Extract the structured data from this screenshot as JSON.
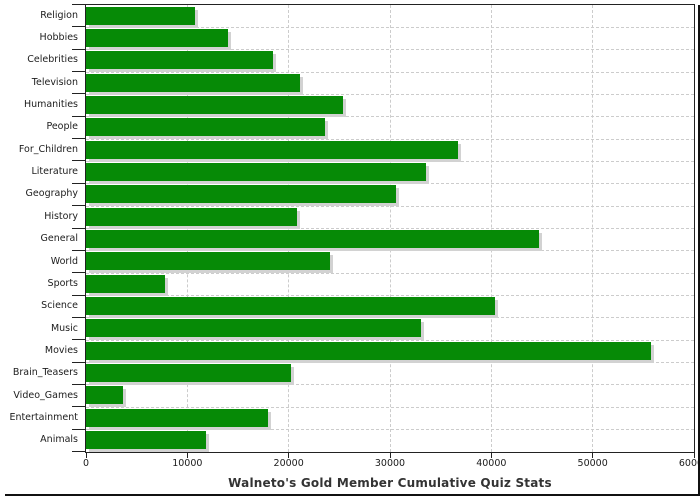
{
  "chart_data": {
    "type": "bar",
    "orientation": "horizontal",
    "title": "Walneto's Gold Member Cumulative Quiz Stats",
    "categories": [
      "Religion",
      "Hobbies",
      "Celebrities",
      "Television",
      "Humanities",
      "People",
      "For_Children",
      "Literature",
      "Geography",
      "History",
      "General",
      "World",
      "Sports",
      "Science",
      "Music",
      "Movies",
      "Brain_Teasers",
      "Video_Games",
      "Entertainment",
      "Animals"
    ],
    "values": [
      10750,
      14050,
      18500,
      21100,
      25350,
      23600,
      36700,
      33600,
      30600,
      20850,
      44750,
      24050,
      7800,
      40400,
      33100,
      55800,
      20200,
      3700,
      18000,
      11800
    ],
    "xlabel": "",
    "ylabel": "",
    "xlim": [
      0,
      60000
    ],
    "x_ticks": [
      0,
      10000,
      20000,
      30000,
      40000,
      50000,
      60000
    ],
    "x_tick_labels": [
      "0",
      "10000",
      "20000",
      "30000",
      "40000",
      "50000",
      "60000"
    ],
    "grid": "dashed, vertical at each x tick and horizontal at each category boundary",
    "legend": "none",
    "colors": {
      "bar": "#068A06",
      "bar_shadow": "#d2d2d2",
      "grid": "#cccccc",
      "axis": "#222222",
      "tick": "#222222",
      "text": "#1c1c1c",
      "title": "#333333",
      "frame_shadow": "#111111",
      "background": "#ffffff"
    }
  }
}
